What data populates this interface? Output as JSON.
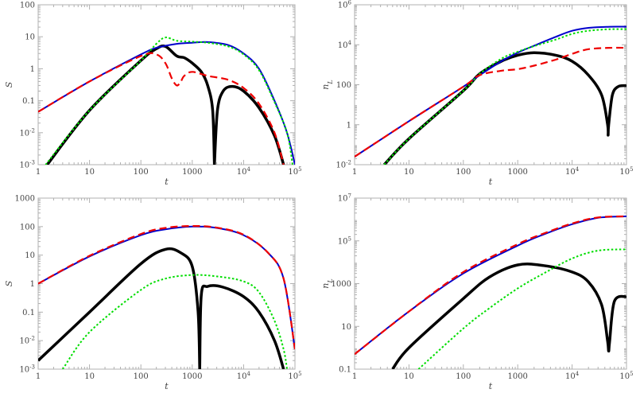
{
  "chart_data": [
    {
      "type": "line",
      "xlabel": "t",
      "ylabel": "S",
      "xscale": "log",
      "yscale": "log",
      "xlim": [
        1,
        100000
      ],
      "ylim": [
        0.001,
        100
      ],
      "xticks": [
        "1",
        "10",
        "100",
        "1000",
        "10^4",
        "10^5"
      ],
      "yticks": [
        "10^-3",
        "10^-2",
        "0.1",
        "1",
        "10",
        "100"
      ],
      "series": [
        {
          "color": "#0000cc",
          "style": "solid",
          "width": 2,
          "points": [
            [
              1,
              0.045
            ],
            [
              10,
              0.4
            ],
            [
              100,
              2.8
            ],
            [
              200,
              4.5
            ],
            [
              500,
              6
            ],
            [
              1000,
              6.5
            ],
            [
              2000,
              6.8
            ],
            [
              5000,
              5.5
            ],
            [
              10000,
              3
            ],
            [
              20000,
              1
            ],
            [
              40000,
              0.1
            ],
            [
              70000,
              0.01
            ],
            [
              100000,
              0.001
            ]
          ]
        },
        {
          "color": "#ee0000",
          "style": "dashed",
          "width": 2.2,
          "points": [
            [
              1,
              0.045
            ],
            [
              10,
              0.4
            ],
            [
              100,
              2.5
            ],
            [
              200,
              2.8
            ],
            [
              300,
              1.5
            ],
            [
              400,
              0.5
            ],
            [
              500,
              0.3
            ],
            [
              600,
              0.4
            ],
            [
              700,
              0.6
            ],
            [
              1000,
              0.8
            ],
            [
              2000,
              0.6
            ],
            [
              5000,
              0.45
            ],
            [
              10000,
              0.25
            ],
            [
              20000,
              0.08
            ],
            [
              40000,
              0.01
            ],
            [
              60000,
              0.001
            ]
          ]
        },
        {
          "color": "#00dd00",
          "style": "dotted",
          "width": 2,
          "points": [
            [
              1.4,
              0.001
            ],
            [
              10,
              0.05
            ],
            [
              100,
              1.8
            ],
            [
              200,
              6
            ],
            [
              300,
              9.5
            ],
            [
              500,
              7.5
            ],
            [
              1000,
              7
            ],
            [
              2000,
              6.5
            ],
            [
              5000,
              5
            ],
            [
              10000,
              2.8
            ],
            [
              20000,
              0.9
            ],
            [
              40000,
              0.09
            ],
            [
              70000,
              0.01
            ],
            [
              90000,
              0.001
            ]
          ]
        },
        {
          "color": "#000000",
          "style": "solid",
          "width": 3.5,
          "points": [
            [
              1.5,
              0.001
            ],
            [
              10,
              0.05
            ],
            [
              100,
              1.8
            ],
            [
              200,
              4.2
            ],
            [
              300,
              5
            ],
            [
              500,
              2.5
            ],
            [
              700,
              2.2
            ],
            [
              1000,
              1.5
            ],
            [
              1500,
              0.8
            ],
            [
              2000,
              0.3
            ],
            [
              2500,
              0.05
            ],
            [
              2700,
              0.001
            ],
            [
              2700,
              0.001
            ],
            [
              3100,
              0.05
            ],
            [
              4000,
              0.2
            ],
            [
              6000,
              0.28
            ],
            [
              10000,
              0.2
            ],
            [
              20000,
              0.06
            ],
            [
              40000,
              0.008
            ],
            [
              60000,
              0.001
            ]
          ]
        }
      ]
    },
    {
      "type": "line",
      "xlabel": "t",
      "ylabel": "n_L",
      "xscale": "log",
      "yscale": "log",
      "xlim": [
        1,
        100000
      ],
      "ylim": [
        0.01,
        1000000
      ],
      "xticks": [
        "1",
        "10",
        "100",
        "1000",
        "10^4",
        "10^5"
      ],
      "yticks": [
        "10^-2",
        "1",
        "100",
        "10^4",
        "10^6"
      ],
      "series": [
        {
          "color": "#0000cc",
          "style": "solid",
          "width": 2,
          "points": [
            [
              1,
              0.025
            ],
            [
              10,
              1.5
            ],
            [
              100,
              80
            ],
            [
              200,
              300
            ],
            [
              500,
              1500
            ],
            [
              1000,
              4000
            ],
            [
              2000,
              9000
            ],
            [
              5000,
              25000
            ],
            [
              10000,
              50000
            ],
            [
              20000,
              70000
            ],
            [
              50000,
              80000
            ],
            [
              100000,
              80000
            ]
          ]
        },
        {
          "color": "#ee0000",
          "style": "dashed",
          "width": 2.2,
          "points": [
            [
              1,
              0.025
            ],
            [
              10,
              1.5
            ],
            [
              100,
              80
            ],
            [
              200,
              300
            ],
            [
              500,
              500
            ],
            [
              1000,
              600
            ],
            [
              2000,
              900
            ],
            [
              5000,
              1800
            ],
            [
              10000,
              3500
            ],
            [
              20000,
              6000
            ],
            [
              50000,
              7000
            ],
            [
              100000,
              7000
            ]
          ]
        },
        {
          "color": "#00dd00",
          "style": "dotted",
          "width": 2,
          "points": [
            [
              3.5,
              0.01
            ],
            [
              10,
              0.2
            ],
            [
              100,
              50
            ],
            [
              200,
              350
            ],
            [
              500,
              2000
            ],
            [
              1000,
              4500
            ],
            [
              2000,
              8500
            ],
            [
              5000,
              18000
            ],
            [
              10000,
              35000
            ],
            [
              20000,
              50000
            ],
            [
              50000,
              60000
            ],
            [
              100000,
              60000
            ]
          ]
        },
        {
          "color": "#000000",
          "style": "solid",
          "width": 3.5,
          "points": [
            [
              3.5,
              0.01
            ],
            [
              10,
              0.2
            ],
            [
              100,
              50
            ],
            [
              200,
              350
            ],
            [
              500,
              1500
            ],
            [
              1000,
              3000
            ],
            [
              2000,
              4000
            ],
            [
              5000,
              3000
            ],
            [
              10000,
              1500
            ],
            [
              20000,
              300
            ],
            [
              35000,
              30
            ],
            [
              45000,
              1
            ],
            [
              46000,
              0.3
            ],
            [
              47000,
              1
            ],
            [
              55000,
              30
            ],
            [
              70000,
              80
            ],
            [
              100000,
              90
            ]
          ]
        }
      ]
    },
    {
      "type": "line",
      "xlabel": "t",
      "ylabel": "S",
      "xscale": "log",
      "yscale": "log",
      "xlim": [
        1,
        100000
      ],
      "ylim": [
        0.001,
        1000
      ],
      "xticks": [
        "1",
        "10",
        "100",
        "1000",
        "10^4",
        "10^5"
      ],
      "yticks": [
        "10^-3",
        "10^-2",
        "0.1",
        "1",
        "10",
        "100",
        "1000"
      ],
      "series": [
        {
          "color": "#0000cc",
          "style": "solid",
          "width": 2,
          "points": [
            [
              1,
              1
            ],
            [
              10,
              9
            ],
            [
              100,
              50
            ],
            [
              300,
              80
            ],
            [
              1000,
              100
            ],
            [
              3000,
              90
            ],
            [
              10000,
              50
            ],
            [
              30000,
              12
            ],
            [
              60000,
              1.5
            ],
            [
              100000,
              0.005
            ]
          ]
        },
        {
          "color": "#ee0000",
          "style": "dashed",
          "width": 2.2,
          "points": [
            [
              1,
              1
            ],
            [
              10,
              9.5
            ],
            [
              100,
              55
            ],
            [
              300,
              90
            ],
            [
              1000,
              105
            ],
            [
              3000,
              92
            ],
            [
              10000,
              52
            ],
            [
              30000,
              12
            ],
            [
              60000,
              1.5
            ],
            [
              100000,
              0.005
            ]
          ]
        },
        {
          "color": "#00dd00",
          "style": "dotted",
          "width": 2,
          "points": [
            [
              3,
              0.001
            ],
            [
              10,
              0.02
            ],
            [
              100,
              0.6
            ],
            [
              300,
              1.5
            ],
            [
              1000,
              2
            ],
            [
              3000,
              1.8
            ],
            [
              10000,
              1.2
            ],
            [
              20000,
              0.5
            ],
            [
              40000,
              0.05
            ],
            [
              60000,
              0.005
            ],
            [
              70000,
              0.001
            ]
          ]
        },
        {
          "color": "#000000",
          "style": "solid",
          "width": 3.5,
          "points": [
            [
              1,
              0.002
            ],
            [
              10,
              0.1
            ],
            [
              100,
              5
            ],
            [
              300,
              16
            ],
            [
              600,
              12
            ],
            [
              1000,
              4
            ],
            [
              1300,
              0.1
            ],
            [
              1400,
              0.001
            ],
            [
              1400,
              0.001
            ],
            [
              1500,
              0.4
            ],
            [
              2000,
              0.8
            ],
            [
              4000,
              0.75
            ],
            [
              10000,
              0.35
            ],
            [
              20000,
              0.1
            ],
            [
              40000,
              0.01
            ],
            [
              60000,
              0.001
            ]
          ]
        }
      ]
    },
    {
      "type": "line",
      "xlabel": "t",
      "ylabel": "n_L",
      "xscale": "log",
      "yscale": "log",
      "xlim": [
        1,
        100000
      ],
      "ylim": [
        0.1,
        10000000
      ],
      "xticks": [
        "1",
        "10",
        "100",
        "1000",
        "10^4",
        "10^5"
      ],
      "yticks": [
        "0.1",
        "10",
        "1000",
        "10^5",
        "10^7"
      ],
      "series": [
        {
          "color": "#0000cc",
          "style": "solid",
          "width": 2,
          "points": [
            [
              1,
              0.5
            ],
            [
              10,
              50
            ],
            [
              100,
              3000
            ],
            [
              1000,
              60000
            ],
            [
              3000,
              200000
            ],
            [
              10000,
              600000
            ],
            [
              30000,
              1200000
            ],
            [
              100000,
              1400000
            ]
          ]
        },
        {
          "color": "#ee0000",
          "style": "dashed",
          "width": 2.2,
          "points": [
            [
              1,
              0.5
            ],
            [
              10,
              50
            ],
            [
              100,
              3500
            ],
            [
              1000,
              70000
            ],
            [
              3000,
              220000
            ],
            [
              10000,
              650000
            ],
            [
              30000,
              1250000
            ],
            [
              100000,
              1400000
            ]
          ]
        },
        {
          "color": "#00dd00",
          "style": "dotted",
          "width": 2,
          "points": [
            [
              15,
              0.1
            ],
            [
              100,
              8
            ],
            [
              300,
              70
            ],
            [
              1000,
              600
            ],
            [
              3000,
              3000
            ],
            [
              10000,
              15000
            ],
            [
              30000,
              35000
            ],
            [
              100000,
              40000
            ]
          ]
        },
        {
          "color": "#000000",
          "style": "solid",
          "width": 3.5,
          "points": [
            [
              5,
              0.1
            ],
            [
              10,
              1
            ],
            [
              100,
              200
            ],
            [
              300,
              2000
            ],
            [
              1000,
              7500
            ],
            [
              3000,
              7000
            ],
            [
              10000,
              3500
            ],
            [
              20000,
              1200
            ],
            [
              35000,
              100
            ],
            [
              45000,
              2
            ],
            [
              47000,
              0.7
            ],
            [
              49000,
              2
            ],
            [
              60000,
              150
            ],
            [
              100000,
              250
            ]
          ]
        }
      ]
    }
  ]
}
